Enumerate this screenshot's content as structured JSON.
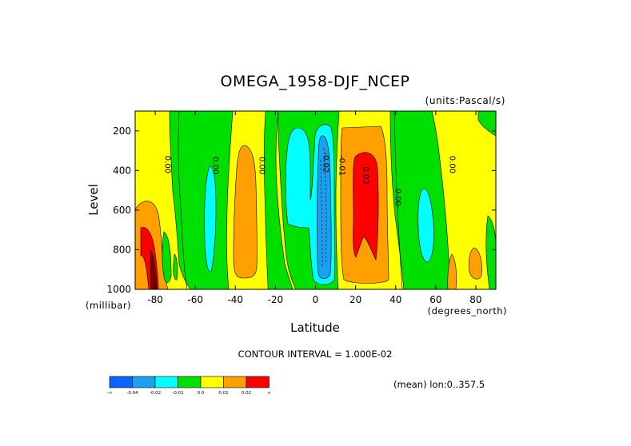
{
  "chart_data": {
    "type": "heatmap",
    "title": "OMEGA_1958-DJF_NCEP",
    "units_label": "(units:Pascal/s)",
    "xlabel": "Latitude",
    "ylabel": "Level",
    "x_unit_label": "(degrees_north)",
    "y_unit_label": "(millibar)",
    "xlim": [
      -90,
      90
    ],
    "ylim": [
      1000,
      100
    ],
    "x_ticks": [
      -80,
      -60,
      -40,
      -20,
      0,
      20,
      40,
      60,
      80
    ],
    "y_ticks": [
      200,
      400,
      600,
      800,
      1000
    ],
    "contour_interval_label": "CONTOUR INTERVAL = 1.000E-02",
    "mean_label": "(mean) lon:0..357.5",
    "contour_labels": [
      {
        "text": "0.00",
        "x": -75,
        "y": 370
      },
      {
        "text": "0.00",
        "x": -51,
        "y": 375
      },
      {
        "text": "0.00",
        "x": -28,
        "y": 375
      },
      {
        "text": "-0.02",
        "x": 4,
        "y": 360
      },
      {
        "text": "-0.01",
        "x": 12,
        "y": 375
      },
      {
        "text": "0.03",
        "x": 24,
        "y": 425
      },
      {
        "text": "0.00",
        "x": 40,
        "y": 535
      },
      {
        "text": "0.00",
        "x": 67,
        "y": 370
      }
    ],
    "colorbar": {
      "colors": [
        "#0a64ff",
        "#19a0f0",
        "#00ffff",
        "#00e000",
        "#ffff00",
        "#ffa000",
        "#ff0000"
      ],
      "labels": [
        "-∞",
        "-0.04",
        "-0.02",
        "-0.01",
        "0.0",
        "0.01",
        "0.02",
        "∞"
      ]
    },
    "field_bands": [
      {
        "x0": -90,
        "x1": -70,
        "value": 0.005,
        "color": "#ffff00"
      },
      {
        "x0": -70,
        "x1": -58,
        "value": -0.005,
        "color": "#00e000"
      },
      {
        "x0": -58,
        "x1": -54,
        "value": -0.015,
        "color": "#00ffff"
      },
      {
        "x0": -54,
        "x1": -45,
        "value": -0.005,
        "color": "#00e000"
      },
      {
        "x0": -45,
        "x1": -40,
        "value": 0.005,
        "color": "#ffff00"
      },
      {
        "x0": -40,
        "x1": -30,
        "value": 0.015,
        "color": "#ffa000"
      },
      {
        "x0": -30,
        "x1": -25,
        "value": 0.005,
        "color": "#ffff00"
      },
      {
        "x0": -25,
        "x1": -15,
        "value": -0.005,
        "color": "#00e000"
      },
      {
        "x0": -15,
        "x1": -5,
        "value": -0.015,
        "color": "#00ffff"
      },
      {
        "x0": 1,
        "x1": 8,
        "value": -0.03,
        "color": "#19a0f0"
      },
      {
        "x0": 15,
        "x1": 34,
        "value": 0.015,
        "color": "#ffa000"
      },
      {
        "x0": 20,
        "x1": 28,
        "value": 0.025,
        "color": "#ff0000"
      },
      {
        "x0": 40,
        "x1": 68,
        "value": -0.005,
        "color": "#00e000"
      },
      {
        "x0": 68,
        "x1": 90,
        "value": 0.005,
        "color": "#ffff00"
      }
    ]
  }
}
